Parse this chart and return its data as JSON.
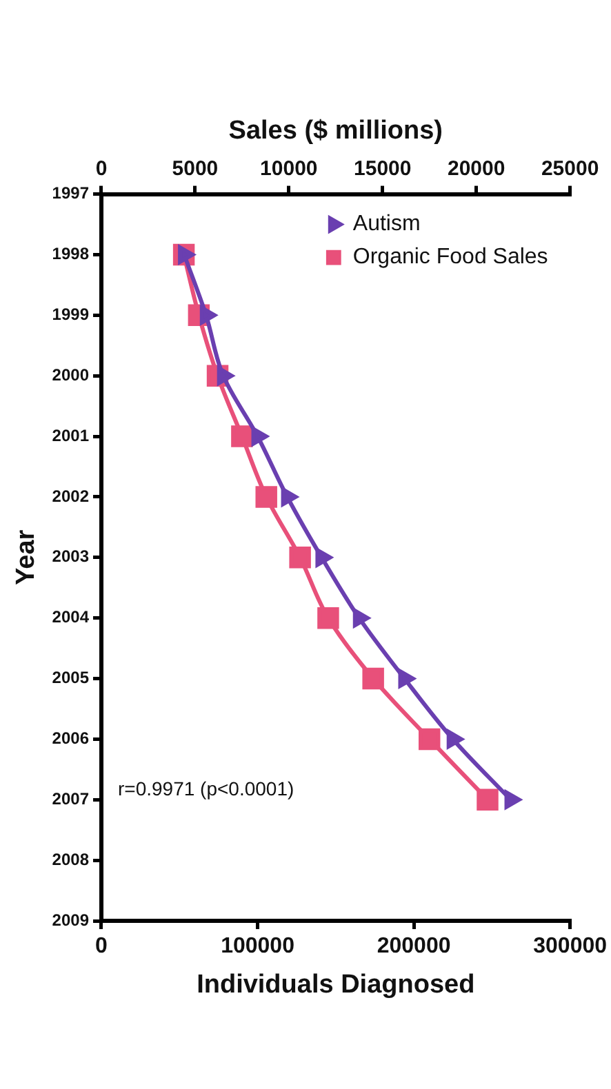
{
  "chart_data": {
    "type": "line",
    "orientation": "horizontal",
    "ylabel": "Year",
    "x2label": "Sales ($ millions)",
    "xlabel": "Individuals Diagnosed",
    "x": [
      1998,
      1999,
      2000,
      2001,
      2002,
      2003,
      2004,
      2005,
      2006,
      2007
    ],
    "series": [
      {
        "name": "Autism",
        "color": "#6a3fb0",
        "marker": "triangle",
        "values": [
          53000,
          67000,
          78000,
          100000,
          119000,
          141000,
          165000,
          194000,
          225000,
          262000
        ]
      },
      {
        "name": "Organic Food Sales",
        "color": "#e8507a",
        "marker": "square",
        "axis": "x2",
        "values": [
          4400,
          5200,
          6200,
          7500,
          8800,
          10600,
          12100,
          14500,
          17500,
          20600
        ]
      }
    ],
    "ylim": [
      2009,
      1997
    ],
    "yticks": [
      1997,
      1998,
      1999,
      2000,
      2001,
      2002,
      2003,
      2004,
      2005,
      2006,
      2007,
      2008,
      2009
    ],
    "x2lim": [
      0,
      25000
    ],
    "x2ticks": [
      0,
      5000,
      10000,
      15000,
      20000,
      25000
    ],
    "xlim": [
      0,
      300000
    ],
    "xticks": [
      0,
      100000,
      200000,
      300000
    ],
    "grid": false,
    "legend": "top right",
    "line_style": "solid",
    "annotations": [
      "r=0.9971 (p<0.0001)"
    ]
  }
}
